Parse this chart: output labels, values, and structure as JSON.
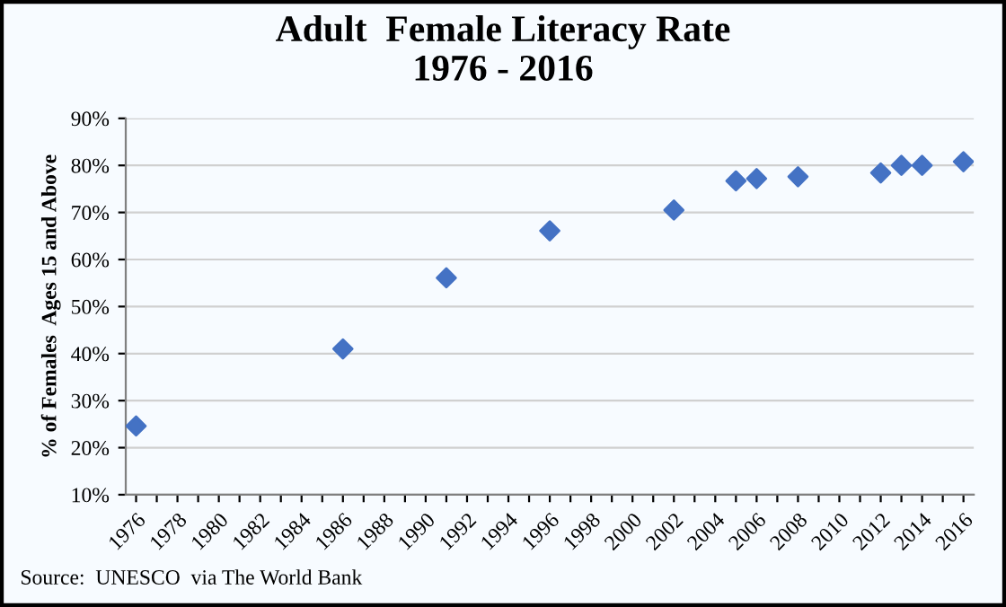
{
  "chart_data": {
    "type": "scatter",
    "title": "Adult  Female Literacy Rate\n1976 - 2016",
    "ylabel": "% of Females  Ages 15 and Above",
    "categories": [
      "1976",
      null,
      "1978",
      null,
      "1980",
      null,
      "1982",
      null,
      "1984",
      null,
      "1986",
      null,
      "1988",
      null,
      "1990",
      null,
      "1992",
      null,
      "1994",
      null,
      "1996",
      null,
      "1998",
      null,
      "2000",
      null,
      "2002",
      null,
      "2004",
      null,
      "2006",
      null,
      "2008",
      null,
      "2010",
      null,
      "2012",
      null,
      "2014",
      null,
      "2016"
    ],
    "series": [
      {
        "color": "#4472c4",
        "values": [
          24.6,
          null,
          null,
          null,
          null,
          null,
          null,
          null,
          null,
          null,
          41.0,
          null,
          null,
          null,
          null,
          56.1,
          null,
          null,
          null,
          null,
          66.1,
          null,
          null,
          null,
          null,
          null,
          70.5,
          null,
          null,
          76.7,
          77.2,
          null,
          77.6,
          null,
          null,
          null,
          78.4,
          80.0,
          80.0,
          null,
          80.8
        ]
      }
    ],
    "ylim": [
      10,
      90
    ],
    "yticks": [
      {
        "value": 10,
        "label": "10%"
      },
      {
        "value": 20,
        "label": "20%"
      },
      {
        "value": 30,
        "label": "30%"
      },
      {
        "value": 40,
        "label": "40%"
      },
      {
        "value": 50,
        "label": "50%"
      },
      {
        "value": 60,
        "label": "60%"
      },
      {
        "value": 70,
        "label": "70%"
      },
      {
        "value": 80,
        "label": "80%"
      },
      {
        "value": 90,
        "label": "90%"
      }
    ],
    "grid": "y",
    "marker": "diamond",
    "legend": false,
    "annotations": [
      "Source:  UNESCO  via The World Bank"
    ]
  }
}
